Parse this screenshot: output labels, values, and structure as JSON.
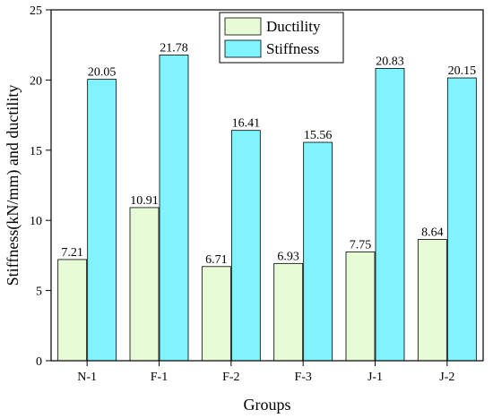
{
  "colors": {
    "ductility": "#e6fbd6",
    "stiffness": "#7ff4ff",
    "axis": "#000000"
  },
  "chart_data": {
    "type": "bar",
    "title": "",
    "xlabel": "Groups",
    "ylabel": "Stiffness(kN/mm) and ductility",
    "categories": [
      "N-1",
      "F-1",
      "F-2",
      "F-3",
      "J-1",
      "J-2"
    ],
    "series": [
      {
        "name": "Ductility",
        "values": [
          7.21,
          10.91,
          6.71,
          6.93,
          7.75,
          8.64
        ]
      },
      {
        "name": "Stiffness",
        "values": [
          20.05,
          21.78,
          16.41,
          15.56,
          20.83,
          20.15
        ]
      }
    ],
    "value_labels": [
      [
        "7.21",
        "10.91",
        "6.71",
        "6.93",
        "7.75",
        "8.64"
      ],
      [
        "20.05",
        "21.78",
        "16.41",
        "15.56",
        "20.83",
        "20.15"
      ]
    ],
    "ylim": [
      0,
      25
    ],
    "yticks": [
      0,
      5,
      10,
      15,
      20,
      25
    ],
    "ytick_labels": [
      "0",
      "5",
      "10",
      "15",
      "20",
      "25"
    ],
    "grid": false,
    "legend_position": "top-center"
  }
}
